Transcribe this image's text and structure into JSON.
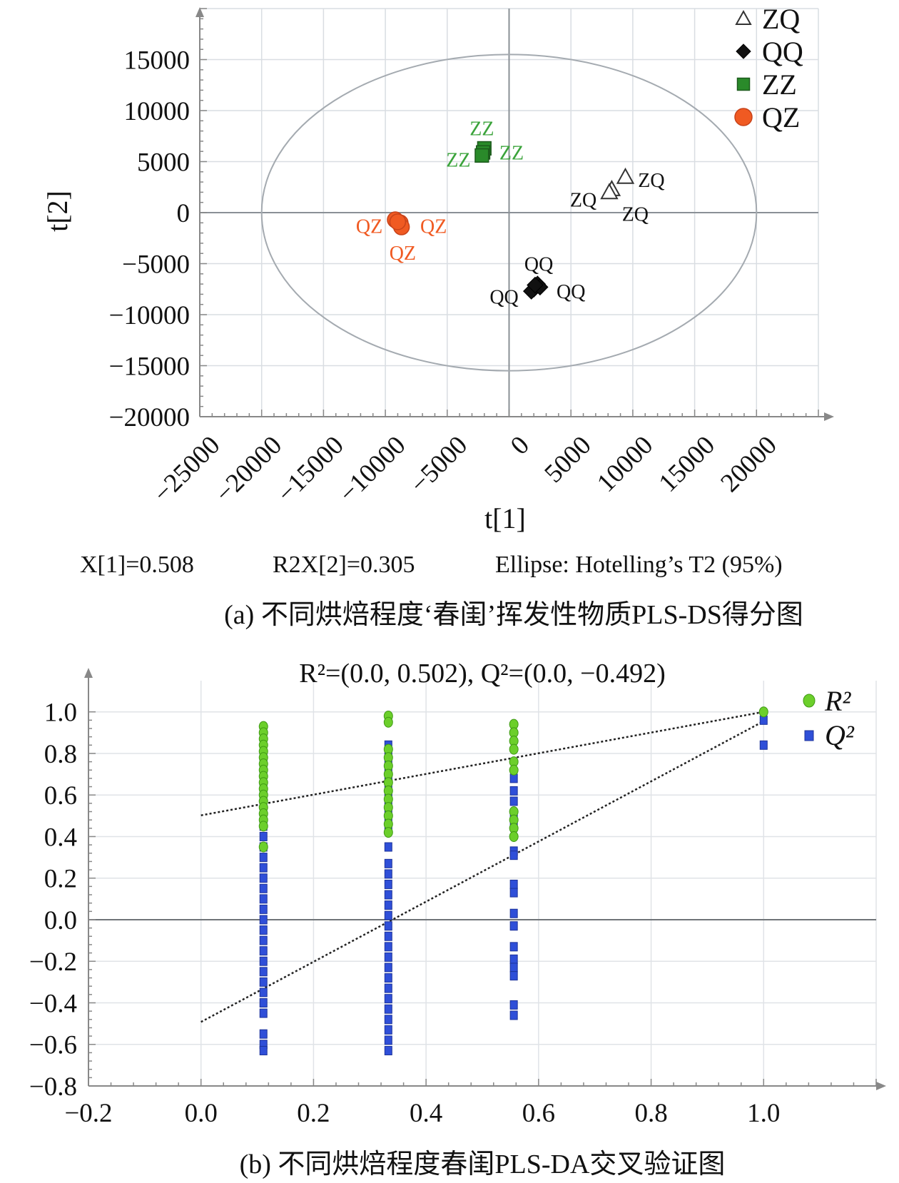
{
  "chart_data": [
    {
      "type": "scatter",
      "xlabel": "t[1]",
      "ylabel": "t[2]",
      "xlim": [
        -25000,
        25000
      ],
      "ylim": [
        -20000,
        20000
      ],
      "x_ticks": [
        "−25000",
        "−20000",
        "−15000",
        "−10000",
        "−5000",
        "0",
        "5000",
        "10000",
        "15000",
        "20000"
      ],
      "y_ticks": [
        "15000",
        "10000",
        "5000",
        "0",
        "−5000",
        "−10000",
        "−15000",
        "−20000"
      ],
      "grid": true,
      "ellipse": {
        "cx": 0,
        "cy": 0,
        "rx": 20000,
        "ry": 15500
      },
      "legend_position": "top-right",
      "series": [
        {
          "name": "ZQ",
          "marker": "open-triangle",
          "color": "#333333",
          "label_color": "#111111",
          "points": [
            [
              9400,
              3500
            ],
            [
              8300,
              2300
            ],
            [
              8100,
              2000
            ]
          ],
          "labels": [
            {
              "text": "ZQ",
              "x": 11500,
              "y": 3200
            },
            {
              "text": "ZQ",
              "x": 6000,
              "y": 1300
            },
            {
              "text": "ZQ",
              "x": 10200,
              "y": -100
            }
          ]
        },
        {
          "name": "QQ",
          "marker": "diamond",
          "color": "#111111",
          "label_color": "#111111",
          "points": [
            [
              2300,
              -7000
            ],
            [
              2000,
              -7500
            ],
            [
              1800,
              -7700
            ],
            [
              2500,
              -7300
            ],
            [
              2100,
              -7100
            ]
          ],
          "labels": [
            {
              "text": "QQ",
              "x": 2400,
              "y": -5000
            },
            {
              "text": "QQ",
              "x": -400,
              "y": -8200
            },
            {
              "text": "QQ",
              "x": 5000,
              "y": -7700
            }
          ]
        },
        {
          "name": "ZZ",
          "marker": "square",
          "color": "#2a8a2a",
          "label_color": "#3aa33a",
          "points": [
            [
              -2000,
              6300
            ],
            [
              -2100,
              5900
            ],
            [
              -2200,
              5600
            ]
          ],
          "labels": [
            {
              "text": "ZZ",
              "x": -2200,
              "y": 8300
            },
            {
              "text": "ZZ",
              "x": -4100,
              "y": 5200
            },
            {
              "text": "ZZ",
              "x": 200,
              "y": 5900
            }
          ]
        },
        {
          "name": "QZ",
          "marker": "circle",
          "color": "#f05a22",
          "label_color": "#f05a22",
          "points": [
            [
              -9200,
              -700
            ],
            [
              -8800,
              -1000
            ],
            [
              -8700,
              -1400
            ],
            [
              -9000,
              -900
            ]
          ],
          "labels": [
            {
              "text": "QZ",
              "x": -11300,
              "y": -1300
            },
            {
              "text": "QZ",
              "x": -6100,
              "y": -1300
            },
            {
              "text": "QZ",
              "x": -8600,
              "y": -3900
            }
          ]
        }
      ]
    },
    {
      "type": "scatter",
      "title": "R²=(0.0, 0.502), Q²=(0.0, −0.492)",
      "xlim": [
        -0.2,
        1.2
      ],
      "ylim": [
        -0.8,
        1.15
      ],
      "x_ticks": [
        "−0.2",
        "0.0",
        "0.2",
        "0.4",
        "0.6",
        "0.8",
        "1.0"
      ],
      "y_ticks": [
        "1.0",
        "0.8",
        "0.6",
        "0.4",
        "0.2",
        "0.0",
        "−0.2",
        "−0.4",
        "−0.6",
        "−0.8"
      ],
      "grid": true,
      "legend_position": "top-right",
      "series": [
        {
          "name": "R²",
          "marker": "circle",
          "color": "#6ccf2b",
          "points": [
            [
              0.111,
              0.93
            ],
            [
              0.111,
              0.9
            ],
            [
              0.111,
              0.87
            ],
            [
              0.111,
              0.84
            ],
            [
              0.111,
              0.81
            ],
            [
              0.111,
              0.78
            ],
            [
              0.111,
              0.75
            ],
            [
              0.111,
              0.72
            ],
            [
              0.111,
              0.69
            ],
            [
              0.111,
              0.66
            ],
            [
              0.111,
              0.63
            ],
            [
              0.111,
              0.6
            ],
            [
              0.111,
              0.57
            ],
            [
              0.111,
              0.54
            ],
            [
              0.111,
              0.51
            ],
            [
              0.111,
              0.48
            ],
            [
              0.111,
              0.45
            ],
            [
              0.111,
              0.35
            ],
            [
              0.333,
              0.98
            ],
            [
              0.333,
              0.95
            ],
            [
              0.333,
              0.82
            ],
            [
              0.333,
              0.78
            ],
            [
              0.333,
              0.74
            ],
            [
              0.333,
              0.7
            ],
            [
              0.333,
              0.66
            ],
            [
              0.333,
              0.62
            ],
            [
              0.333,
              0.58
            ],
            [
              0.333,
              0.54
            ],
            [
              0.333,
              0.5
            ],
            [
              0.333,
              0.46
            ],
            [
              0.333,
              0.42
            ],
            [
              0.556,
              0.94
            ],
            [
              0.556,
              0.9
            ],
            [
              0.556,
              0.86
            ],
            [
              0.556,
              0.82
            ],
            [
              0.556,
              0.76
            ],
            [
              0.556,
              0.72
            ],
            [
              0.556,
              0.52
            ],
            [
              0.556,
              0.48
            ],
            [
              0.556,
              0.44
            ],
            [
              0.556,
              0.4
            ],
            [
              1.0,
              1.0
            ]
          ]
        },
        {
          "name": "Q²",
          "marker": "square",
          "color": "#2f4fd8",
          "points": [
            [
              0.111,
              0.79
            ],
            [
              0.111,
              0.75
            ],
            [
              0.111,
              0.7
            ],
            [
              0.111,
              0.65
            ],
            [
              0.111,
              0.6
            ],
            [
              0.111,
              0.55
            ],
            [
              0.111,
              0.45
            ],
            [
              0.111,
              0.4
            ],
            [
              0.111,
              0.35
            ],
            [
              0.111,
              0.3
            ],
            [
              0.111,
              0.25
            ],
            [
              0.111,
              0.2
            ],
            [
              0.111,
              0.15
            ],
            [
              0.111,
              0.1
            ],
            [
              0.111,
              0.05
            ],
            [
              0.111,
              0.0
            ],
            [
              0.111,
              -0.05
            ],
            [
              0.111,
              -0.1
            ],
            [
              0.111,
              -0.15
            ],
            [
              0.111,
              -0.2
            ],
            [
              0.111,
              -0.25
            ],
            [
              0.111,
              -0.3
            ],
            [
              0.111,
              -0.35
            ],
            [
              0.111,
              -0.4
            ],
            [
              0.111,
              -0.45
            ],
            [
              0.111,
              -0.55
            ],
            [
              0.111,
              -0.6
            ],
            [
              0.111,
              -0.63
            ],
            [
              0.333,
              0.84
            ],
            [
              0.333,
              0.8
            ],
            [
              0.333,
              0.76
            ],
            [
              0.333,
              0.72
            ],
            [
              0.333,
              0.68
            ],
            [
              0.333,
              0.64
            ],
            [
              0.333,
              0.6
            ],
            [
              0.333,
              0.56
            ],
            [
              0.333,
              0.52
            ],
            [
              0.333,
              0.48
            ],
            [
              0.333,
              0.44
            ],
            [
              0.333,
              0.35
            ],
            [
              0.333,
              0.27
            ],
            [
              0.333,
              0.22
            ],
            [
              0.333,
              0.17
            ],
            [
              0.333,
              0.12
            ],
            [
              0.333,
              0.07
            ],
            [
              0.333,
              0.02
            ],
            [
              0.333,
              -0.03
            ],
            [
              0.333,
              -0.08
            ],
            [
              0.333,
              -0.13
            ],
            [
              0.333,
              -0.18
            ],
            [
              0.333,
              -0.23
            ],
            [
              0.333,
              -0.28
            ],
            [
              0.333,
              -0.33
            ],
            [
              0.333,
              -0.38
            ],
            [
              0.333,
              -0.43
            ],
            [
              0.333,
              -0.48
            ],
            [
              0.333,
              -0.53
            ],
            [
              0.333,
              -0.58
            ],
            [
              0.333,
              -0.63
            ],
            [
              0.556,
              0.68
            ],
            [
              0.556,
              0.62
            ],
            [
              0.556,
              0.57
            ],
            [
              0.556,
              0.51
            ],
            [
              0.556,
              0.46
            ],
            [
              0.556,
              0.33
            ],
            [
              0.556,
              0.31
            ],
            [
              0.556,
              0.17
            ],
            [
              0.556,
              0.13
            ],
            [
              0.556,
              0.03
            ],
            [
              0.556,
              -0.03
            ],
            [
              0.556,
              -0.13
            ],
            [
              0.556,
              -0.19
            ],
            [
              0.556,
              -0.23
            ],
            [
              0.556,
              -0.27
            ],
            [
              0.556,
              -0.41
            ],
            [
              0.556,
              -0.46
            ],
            [
              1.0,
              0.96
            ],
            [
              1.0,
              0.84
            ]
          ]
        }
      ],
      "regression_lines": [
        {
          "name": "R²",
          "from": [
            0.0,
            0.502
          ],
          "to": [
            1.0,
            1.0
          ]
        },
        {
          "name": "Q²",
          "from": [
            0.0,
            -0.492
          ],
          "to": [
            1.0,
            0.955
          ]
        }
      ]
    }
  ],
  "stats_line": {
    "r2x1": "X[1]=0.508",
    "r2x2": "R2X[2]=0.305",
    "ellipse": "Ellipse: Hotelling’s T2 (95%)"
  },
  "captions": {
    "a": "(a) 不同烘焙程度‘春闺’挥发性物质PLS-DS得分图",
    "b": "(b) 不同烘焙程度春闺PLS-DA交叉验证图"
  }
}
